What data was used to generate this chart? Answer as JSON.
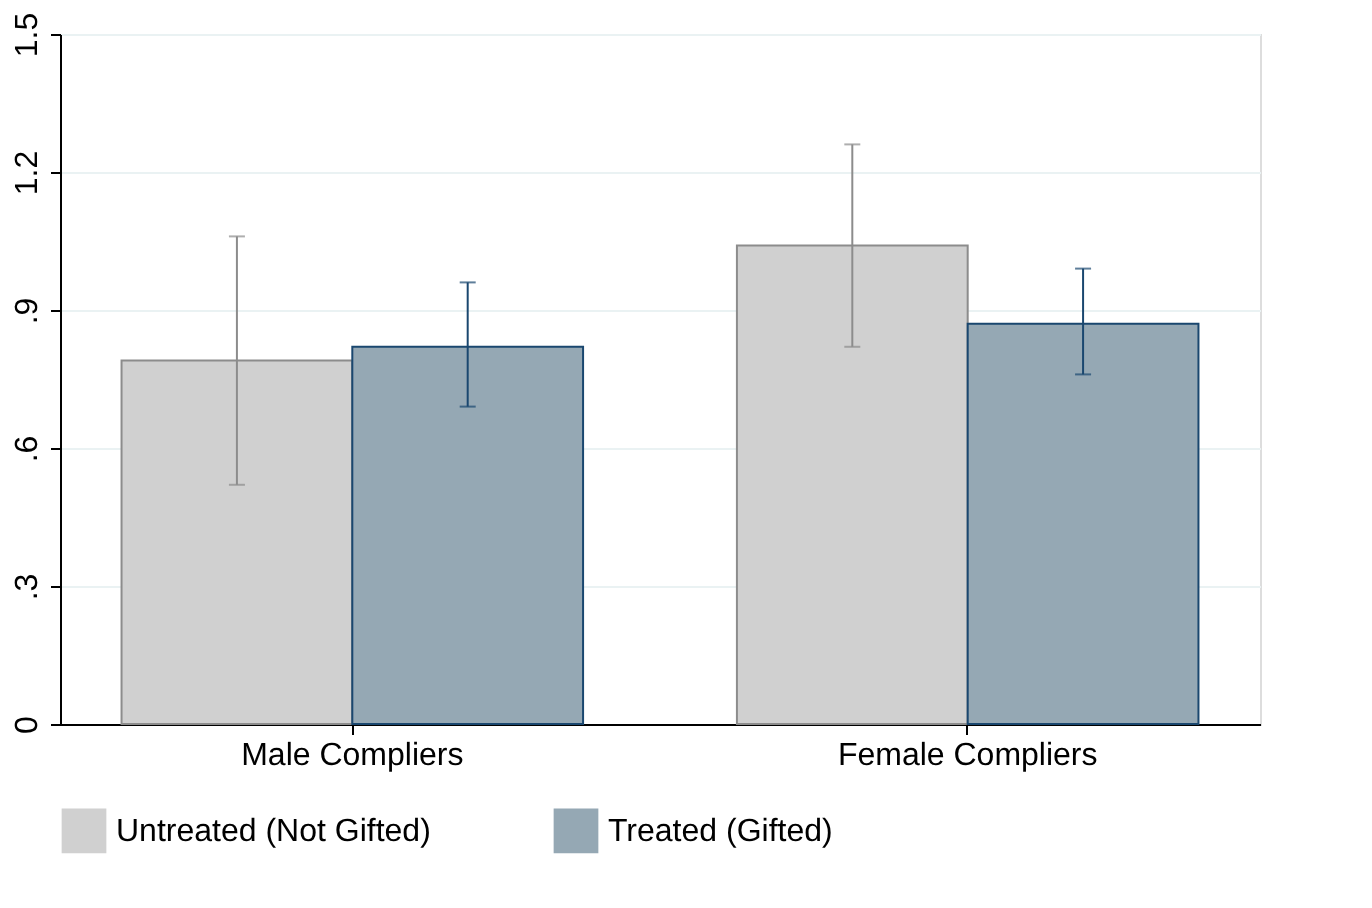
{
  "chart_data": {
    "type": "bar",
    "categories": [
      "Male Compliers",
      "Female Compliers"
    ],
    "series": [
      {
        "name": "Untreated (Not Gifted)",
        "color": "#d0d0d0",
        "values": [
          0.79,
          1.04
        ],
        "errors": [
          [
            0.52,
            1.06
          ],
          [
            0.82,
            1.26
          ]
        ]
      },
      {
        "name": "Treated (Gifted)",
        "color": "#95a8b4",
        "values": [
          0.82,
          0.87
        ],
        "errors": [
          [
            0.69,
            0.96
          ],
          [
            0.76,
            0.99
          ]
        ]
      }
    ],
    "ylim": [
      0,
      1.5
    ],
    "yticks": [
      0,
      {
        "value": 0.3,
        "label": ".3"
      },
      {
        "value": 0.6,
        "label": ".6"
      },
      {
        "value": 0.9,
        "label": ".9"
      },
      1.2,
      1.5
    ],
    "grid": "y",
    "legend": "bottom"
  }
}
